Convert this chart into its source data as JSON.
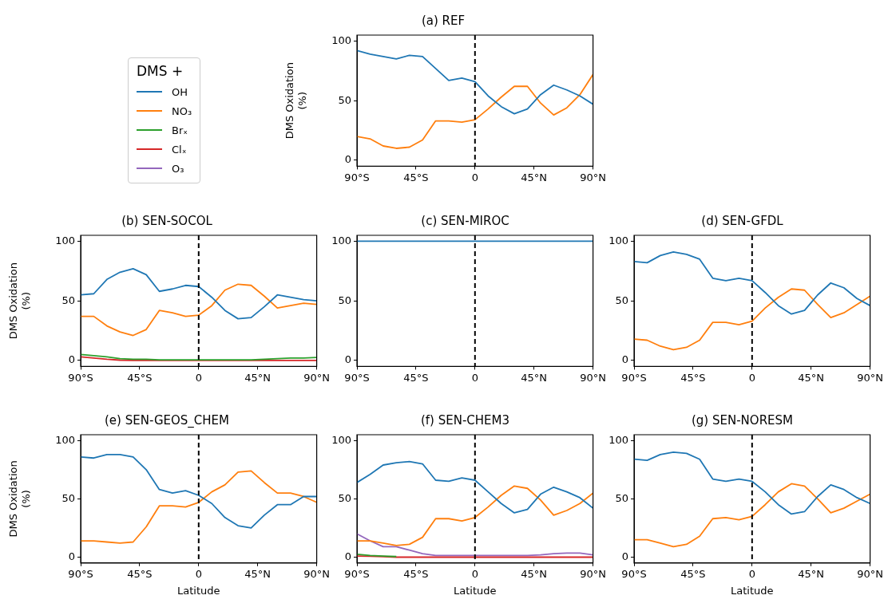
{
  "chart_data": [
    {
      "type": "line",
      "title": "(a) REF",
      "ylabel": "DMS Oxidation\n(%)",
      "legend": "left",
      "legend_title": "DMS +",
      "marker": "none",
      "line_style": "solid",
      "grid": false,
      "x": [
        -90,
        -80,
        -70,
        -60,
        -50,
        -40,
        -30,
        -20,
        -10,
        0,
        10,
        20,
        30,
        40,
        50,
        60,
        70,
        80,
        90
      ],
      "xlim": [
        -90,
        90
      ],
      "xticks": [
        {
          "value": -90,
          "label": "90°S"
        },
        {
          "value": -45,
          "label": "45°S"
        },
        {
          "value": 0,
          "label": "0"
        },
        {
          "value": 45,
          "label": "45°N"
        },
        {
          "value": 90,
          "label": "90°N"
        }
      ],
      "ylim": [
        -5,
        105
      ],
      "yticks": [
        0,
        50,
        100
      ],
      "ref_lines": [
        {
          "axis": "x",
          "value": 0,
          "color": "#000000",
          "line_style": "dashed"
        }
      ],
      "series": [
        {
          "name": "OH",
          "color": "#1f77b4",
          "values": [
            92,
            89,
            87,
            85,
            88,
            87,
            77,
            67,
            69,
            66,
            54,
            45,
            39,
            43,
            55,
            63,
            59,
            54,
            47
          ]
        },
        {
          "name": "NO₃",
          "color": "#ff7f0e",
          "values": [
            20,
            18,
            12,
            10,
            11,
            17,
            33,
            33,
            32,
            34,
            43,
            53,
            62,
            62,
            48,
            38,
            44,
            55,
            72
          ]
        },
        {
          "name": "Brₓ",
          "color": "#2ca02c",
          "values": [
            null,
            null,
            null,
            null,
            null,
            null,
            null,
            null,
            null,
            null,
            null,
            null,
            null,
            null,
            null,
            null,
            null,
            null,
            null
          ]
        },
        {
          "name": "Clₓ",
          "color": "#d62728",
          "values": [
            null,
            null,
            null,
            null,
            null,
            null,
            null,
            null,
            null,
            null,
            null,
            null,
            null,
            null,
            null,
            null,
            null,
            null,
            null
          ]
        },
        {
          "name": "O₃",
          "color": "#9467bd",
          "values": [
            null,
            null,
            null,
            null,
            null,
            null,
            null,
            null,
            null,
            null,
            null,
            null,
            null,
            null,
            null,
            null,
            null,
            null,
            null
          ]
        }
      ]
    },
    {
      "type": "line",
      "title": "(b) SEN-SOCOL",
      "ylabel": "DMS Oxidation\n(%)",
      "marker": "none",
      "line_style": "solid",
      "grid": false,
      "x": [
        -90,
        -80,
        -70,
        -60,
        -50,
        -40,
        -30,
        -20,
        -10,
        0,
        10,
        20,
        30,
        40,
        50,
        60,
        70,
        80,
        90
      ],
      "xlim": [
        -90,
        90
      ],
      "xticks": [
        {
          "value": -90,
          "label": "90°S"
        },
        {
          "value": -45,
          "label": "45°S"
        },
        {
          "value": 0,
          "label": "0"
        },
        {
          "value": 45,
          "label": "45°N"
        },
        {
          "value": 90,
          "label": "90°N"
        }
      ],
      "ylim": [
        -5,
        105
      ],
      "yticks": [
        0,
        50,
        100
      ],
      "ref_lines": [
        {
          "axis": "x",
          "value": 0,
          "color": "#000000",
          "line_style": "dashed"
        }
      ],
      "series": [
        {
          "color": "#1f77b4",
          "values": [
            55,
            56,
            68,
            74,
            77,
            72,
            58,
            60,
            63,
            62,
            53,
            42,
            35,
            36,
            45,
            55,
            53,
            51,
            50
          ]
        },
        {
          "color": "#ff7f0e",
          "values": [
            37,
            37,
            29,
            24,
            21,
            26,
            42,
            40,
            37,
            38,
            46,
            59,
            64,
            63,
            54,
            44,
            46,
            48,
            47
          ]
        },
        {
          "color": "#2ca02c",
          "values": [
            5,
            4,
            3,
            1.5,
            1,
            1,
            0.5,
            0.5,
            0.5,
            0.5,
            0.5,
            0.5,
            0.5,
            0.5,
            1,
            1.5,
            2,
            2,
            2.5
          ]
        },
        {
          "color": "#d62728",
          "values": [
            3,
            2,
            1,
            0.3,
            0,
            0,
            0,
            0,
            0,
            0,
            0,
            0,
            0,
            0,
            0,
            0,
            0,
            0,
            0
          ]
        }
      ]
    },
    {
      "type": "line",
      "title": "(c) SEN-MIROC",
      "marker": "none",
      "line_style": "solid",
      "grid": false,
      "x": [
        -90,
        -80,
        -70,
        -60,
        -50,
        -40,
        -30,
        -20,
        -10,
        0,
        10,
        20,
        30,
        40,
        50,
        60,
        70,
        80,
        90
      ],
      "xlim": [
        -90,
        90
      ],
      "xticks": [
        {
          "value": -90,
          "label": "90°S"
        },
        {
          "value": -45,
          "label": "45°S"
        },
        {
          "value": 0,
          "label": "0"
        },
        {
          "value": 45,
          "label": "45°N"
        },
        {
          "value": 90,
          "label": "90°N"
        }
      ],
      "ylim": [
        -5,
        105
      ],
      "yticks": [
        0,
        50,
        100
      ],
      "ref_lines": [
        {
          "axis": "x",
          "value": 0,
          "color": "#000000",
          "line_style": "dashed"
        }
      ],
      "series": [
        {
          "color": "#1f77b4",
          "values": [
            100,
            100,
            100,
            100,
            100,
            100,
            100,
            100,
            100,
            100,
            100,
            100,
            100,
            100,
            100,
            100,
            100,
            100,
            100
          ]
        }
      ]
    },
    {
      "type": "line",
      "title": "(d) SEN-GFDL",
      "marker": "none",
      "line_style": "solid",
      "grid": false,
      "x": [
        -90,
        -80,
        -70,
        -60,
        -50,
        -40,
        -30,
        -20,
        -10,
        0,
        10,
        20,
        30,
        40,
        50,
        60,
        70,
        80,
        90
      ],
      "xlim": [
        -90,
        90
      ],
      "xticks": [
        {
          "value": -90,
          "label": "90°S"
        },
        {
          "value": -45,
          "label": "45°S"
        },
        {
          "value": 0,
          "label": "0"
        },
        {
          "value": 45,
          "label": "45°N"
        },
        {
          "value": 90,
          "label": "90°N"
        }
      ],
      "ylim": [
        -5,
        105
      ],
      "yticks": [
        0,
        50,
        100
      ],
      "ref_lines": [
        {
          "axis": "x",
          "value": 0,
          "color": "#000000",
          "line_style": "dashed"
        }
      ],
      "series": [
        {
          "color": "#1f77b4",
          "values": [
            83,
            82,
            88,
            91,
            89,
            85,
            69,
            67,
            69,
            67,
            57,
            46,
            39,
            42,
            55,
            65,
            61,
            52,
            46
          ]
        },
        {
          "color": "#ff7f0e",
          "values": [
            18,
            17,
            12,
            9,
            11,
            17,
            32,
            32,
            30,
            33,
            44,
            53,
            60,
            59,
            47,
            36,
            40,
            47,
            54
          ]
        }
      ]
    },
    {
      "type": "line",
      "title": "(e) SEN-GEOS_CHEM",
      "xlabel": "Latitude",
      "ylabel": "DMS Oxidation\n(%)",
      "marker": "none",
      "line_style": "solid",
      "grid": false,
      "x": [
        -90,
        -80,
        -70,
        -60,
        -50,
        -40,
        -30,
        -20,
        -10,
        0,
        10,
        20,
        30,
        40,
        50,
        60,
        70,
        80,
        90
      ],
      "xlim": [
        -90,
        90
      ],
      "xticks": [
        {
          "value": -90,
          "label": "90°S"
        },
        {
          "value": -45,
          "label": "45°S"
        },
        {
          "value": 0,
          "label": "0"
        },
        {
          "value": 45,
          "label": "45°N"
        },
        {
          "value": 90,
          "label": "90°N"
        }
      ],
      "ylim": [
        -5,
        105
      ],
      "yticks": [
        0,
        50,
        100
      ],
      "ref_lines": [
        {
          "axis": "x",
          "value": 0,
          "color": "#000000",
          "line_style": "dashed"
        }
      ],
      "series": [
        {
          "color": "#1f77b4",
          "values": [
            86,
            85,
            88,
            88,
            86,
            75,
            58,
            55,
            57,
            53,
            46,
            34,
            27,
            25,
            36,
            45,
            45,
            52,
            52
          ]
        },
        {
          "color": "#ff7f0e",
          "values": [
            14,
            14,
            13,
            12,
            13,
            26,
            44,
            44,
            43,
            47,
            56,
            62,
            73,
            74,
            64,
            55,
            55,
            52,
            47
          ]
        }
      ]
    },
    {
      "type": "line",
      "title": "(f) SEN-CHEM3",
      "xlabel": "Latitude",
      "marker": "none",
      "line_style": "solid",
      "grid": false,
      "x": [
        -90,
        -80,
        -70,
        -60,
        -50,
        -40,
        -30,
        -20,
        -10,
        0,
        10,
        20,
        30,
        40,
        50,
        60,
        70,
        80,
        90
      ],
      "xlim": [
        -90,
        90
      ],
      "xticks": [
        {
          "value": -90,
          "label": "90°S"
        },
        {
          "value": -45,
          "label": "45°S"
        },
        {
          "value": 0,
          "label": "0"
        },
        {
          "value": 45,
          "label": "45°N"
        },
        {
          "value": 90,
          "label": "90°N"
        }
      ],
      "ylim": [
        -5,
        105
      ],
      "yticks": [
        0,
        50,
        100
      ],
      "ref_lines": [
        {
          "axis": "x",
          "value": 0,
          "color": "#000000",
          "line_style": "dashed"
        }
      ],
      "series": [
        {
          "color": "#1f77b4",
          "values": [
            64,
            71,
            79,
            81,
            82,
            80,
            66,
            65,
            68,
            66,
            56,
            46,
            38,
            41,
            54,
            60,
            56,
            51,
            42
          ]
        },
        {
          "color": "#ff7f0e",
          "values": [
            14,
            14,
            12,
            10,
            11,
            17,
            33,
            33,
            31,
            34,
            43,
            53,
            61,
            59,
            49,
            36,
            40,
            46,
            55
          ]
        },
        {
          "color": "#2ca02c",
          "values": [
            2.5,
            1.5,
            1,
            0.5,
            null,
            null,
            null,
            null,
            null,
            null,
            null,
            null,
            null,
            null,
            null,
            null,
            null,
            null,
            null
          ]
        },
        {
          "color": "#d62728",
          "values": [
            1,
            0.8,
            0.5,
            0,
            0,
            0,
            0,
            0,
            0,
            0,
            0,
            0,
            0,
            0,
            0,
            0,
            0,
            0,
            0
          ]
        },
        {
          "color": "#9467bd",
          "values": [
            20,
            14,
            9,
            9,
            6,
            3,
            1.5,
            1.5,
            1.5,
            1.5,
            1.5,
            1.5,
            1.5,
            1.5,
            2,
            3,
            3.5,
            3.5,
            2
          ]
        }
      ]
    },
    {
      "type": "line",
      "title": "(g) SEN-NORESM",
      "xlabel": "Latitude",
      "marker": "none",
      "line_style": "solid",
      "grid": false,
      "x": [
        -90,
        -80,
        -70,
        -60,
        -50,
        -40,
        -30,
        -20,
        -10,
        0,
        10,
        20,
        30,
        40,
        50,
        60,
        70,
        80,
        90
      ],
      "xlim": [
        -90,
        90
      ],
      "xticks": [
        {
          "value": -90,
          "label": "90°S"
        },
        {
          "value": -45,
          "label": "45°S"
        },
        {
          "value": 0,
          "label": "0"
        },
        {
          "value": 45,
          "label": "45°N"
        },
        {
          "value": 90,
          "label": "90°N"
        }
      ],
      "ylim": [
        -5,
        105
      ],
      "yticks": [
        0,
        50,
        100
      ],
      "ref_lines": [
        {
          "axis": "x",
          "value": 0,
          "color": "#000000",
          "line_style": "dashed"
        }
      ],
      "series": [
        {
          "color": "#1f77b4",
          "values": [
            84,
            83,
            88,
            90,
            89,
            84,
            67,
            65,
            67,
            65,
            56,
            45,
            37,
            39,
            52,
            62,
            58,
            51,
            46
          ]
        },
        {
          "color": "#ff7f0e",
          "values": [
            15,
            15,
            12,
            9,
            11,
            18,
            33,
            34,
            32,
            35,
            45,
            56,
            63,
            61,
            50,
            38,
            42,
            48,
            54
          ]
        }
      ]
    }
  ]
}
